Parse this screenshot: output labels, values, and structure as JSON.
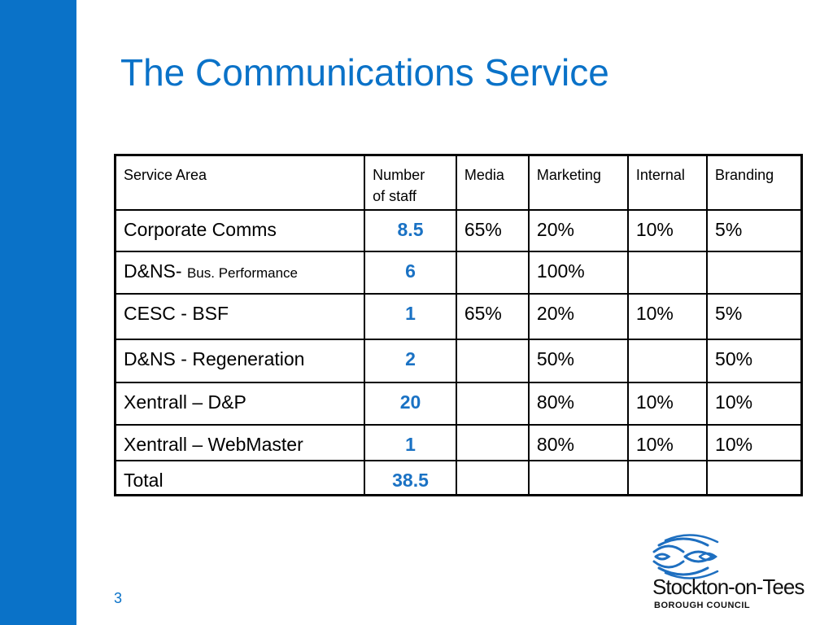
{
  "title": "The Communications Service",
  "table": {
    "headers": [
      "Service Area",
      "Number of staff",
      "Media",
      "Marketing",
      "Internal",
      "Branding"
    ],
    "header_number_line1": "Number",
    "header_number_line2": "of staff",
    "rows": [
      {
        "area": "Corporate Comms",
        "area_sub": "",
        "staff": "8.5",
        "media": "65%",
        "marketing": "20%",
        "internal": "10%",
        "branding": "5%"
      },
      {
        "area": "D&NS-",
        "area_sub": "Bus. Performance",
        "staff": "6",
        "media": "",
        "marketing": "100%",
        "internal": "",
        "branding": ""
      },
      {
        "area": "CESC - BSF",
        "area_sub": "",
        "staff": "1",
        "media": "65%",
        "marketing": "20%",
        "internal": "10%",
        "branding": "5%"
      },
      {
        "area": "D&NS - Regeneration",
        "area_sub": "",
        "staff": "2",
        "media": "",
        "marketing": "50%",
        "internal": "",
        "branding": "50%"
      },
      {
        "area": "Xentrall – D&P",
        "area_sub": "",
        "staff": "20",
        "media": "",
        "marketing": "80%",
        "internal": "10%",
        "branding": "10%"
      },
      {
        "area": "Xentrall – WebMaster",
        "area_sub": "",
        "staff": "1",
        "media": "",
        "marketing": "80%",
        "internal": "10%",
        "branding": "10%"
      },
      {
        "area": "Total",
        "area_sub": "",
        "staff": "38.5",
        "media": "",
        "marketing": "",
        "internal": "",
        "branding": ""
      }
    ]
  },
  "slide_number": "3",
  "logo": {
    "name": "Stockton-on-Tees",
    "subtitle": "BOROUGH COUNCIL",
    "icon": "concentric-arcs-logo-icon"
  },
  "colors": {
    "accent": "#0a72c8",
    "number_text": "#1a72c4",
    "logo_blue": "#1e6fc0"
  }
}
